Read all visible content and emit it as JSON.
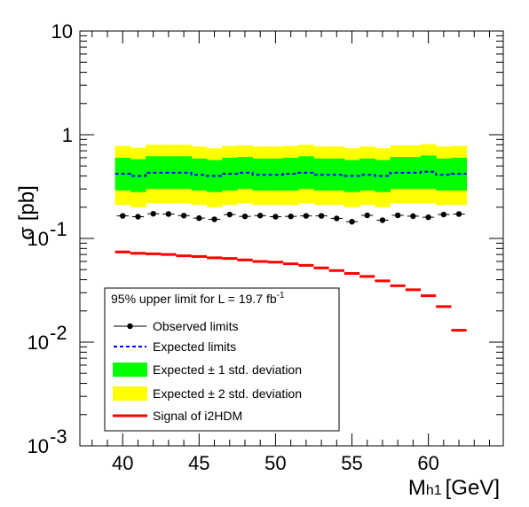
{
  "chart_data": {
    "type": "line",
    "xlabel": "M",
    "xlabel_sub": "h1",
    "xlabel_unit": "[GeV]",
    "ylabel": "σ [pb]",
    "xlim": [
      37.2,
      64.9
    ],
    "ylim": [
      0.001,
      10
    ],
    "yscale": "log",
    "x_ticks": [
      40,
      45,
      50,
      55,
      60
    ],
    "y_ticks": [
      {
        "value": 10,
        "base": "10",
        "exp": ""
      },
      {
        "value": 1,
        "base": "1",
        "exp": ""
      },
      {
        "value": 0.1,
        "base": "10",
        "exp": "-1"
      },
      {
        "value": 0.01,
        "base": "10",
        "exp": "-2"
      },
      {
        "value": 0.001,
        "base": "10",
        "exp": "-3"
      }
    ],
    "legend": {
      "header_text": "95% upper limit for L = 19.7 fb",
      "header_sup": "-1",
      "entries": [
        {
          "label": "Observed limits",
          "style": "marker"
        },
        {
          "label": "Expected limits",
          "style": "dashed"
        },
        {
          "label": "Expected ± 1 std. deviation",
          "style": "band1"
        },
        {
          "label": "Expected ± 2 std. deviation",
          "style": "band2"
        },
        {
          "label": "Signal of i2HDM",
          "style": "signal"
        }
      ]
    },
    "colors": {
      "observed": "#000000",
      "expected": "#0000ff",
      "band1": "#00ff00",
      "band2": "#ffff00",
      "signal": "#ff0000"
    },
    "bin_width": 1,
    "bin_centers": [
      40,
      41,
      42,
      43,
      44,
      45,
      46,
      47,
      48,
      49,
      50,
      51,
      52,
      53,
      54,
      55,
      56,
      57,
      58,
      59,
      60,
      61,
      62
    ],
    "series": [
      {
        "name": "Observed limits",
        "values": [
          0.165,
          0.162,
          0.173,
          0.172,
          0.166,
          0.157,
          0.153,
          0.17,
          0.163,
          0.166,
          0.162,
          0.163,
          0.165,
          0.165,
          0.156,
          0.145,
          0.167,
          0.15,
          0.167,
          0.164,
          0.16,
          0.17,
          0.172
        ]
      },
      {
        "name": "Expected limits",
        "values": [
          0.42,
          0.4,
          0.43,
          0.43,
          0.43,
          0.41,
          0.4,
          0.42,
          0.43,
          0.41,
          0.41,
          0.42,
          0.43,
          0.41,
          0.41,
          0.4,
          0.41,
          0.4,
          0.43,
          0.43,
          0.44,
          0.41,
          0.42
        ]
      },
      {
        "name": "Expected ± 1 std. deviation",
        "lower": [
          0.29,
          0.28,
          0.3,
          0.3,
          0.3,
          0.29,
          0.28,
          0.29,
          0.3,
          0.29,
          0.29,
          0.29,
          0.3,
          0.29,
          0.29,
          0.28,
          0.29,
          0.28,
          0.3,
          0.3,
          0.3,
          0.29,
          0.29
        ],
        "upper": [
          0.6,
          0.58,
          0.62,
          0.62,
          0.62,
          0.59,
          0.57,
          0.6,
          0.61,
          0.59,
          0.59,
          0.6,
          0.62,
          0.59,
          0.59,
          0.57,
          0.59,
          0.57,
          0.61,
          0.61,
          0.63,
          0.59,
          0.6
        ]
      },
      {
        "name": "Expected ± 2 std. deviation",
        "lower": [
          0.21,
          0.2,
          0.22,
          0.22,
          0.22,
          0.21,
          0.2,
          0.21,
          0.22,
          0.21,
          0.21,
          0.21,
          0.22,
          0.21,
          0.21,
          0.2,
          0.21,
          0.2,
          0.22,
          0.22,
          0.22,
          0.21,
          0.21
        ],
        "upper": [
          0.78,
          0.75,
          0.8,
          0.8,
          0.8,
          0.77,
          0.74,
          0.78,
          0.79,
          0.77,
          0.77,
          0.78,
          0.8,
          0.77,
          0.77,
          0.74,
          0.77,
          0.74,
          0.79,
          0.79,
          0.81,
          0.77,
          0.78
        ]
      },
      {
        "name": "Signal of i2HDM",
        "values": [
          0.074,
          0.072,
          0.071,
          0.07,
          0.068,
          0.067,
          0.065,
          0.064,
          0.062,
          0.06,
          0.059,
          0.057,
          0.055,
          0.052,
          0.049,
          0.046,
          0.043,
          0.039,
          0.035,
          0.032,
          0.028,
          0.022,
          0.013
        ]
      }
    ]
  }
}
